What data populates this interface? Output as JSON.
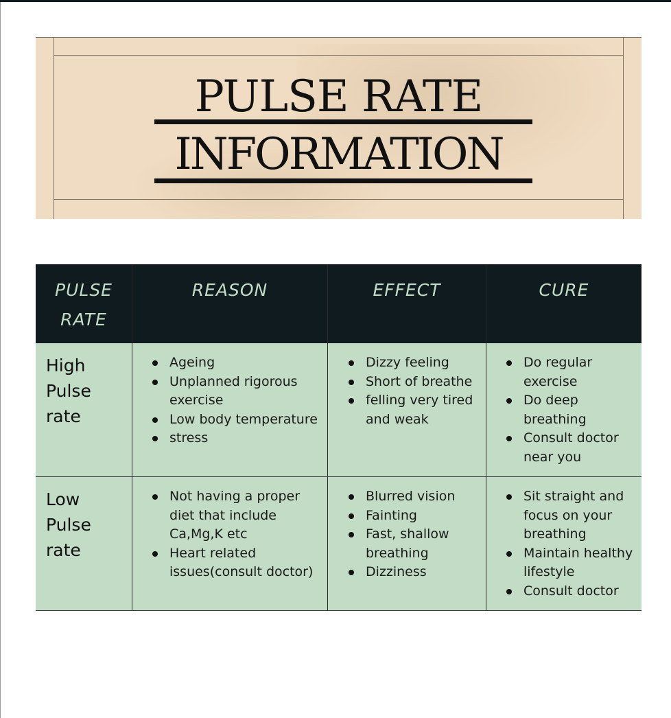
{
  "title": {
    "line1": "PULSE RATE",
    "line2": "INFORMATION"
  },
  "table": {
    "headers": {
      "pulse_rate_line1": "PULSE",
      "pulse_rate_line2": "RATE",
      "reason": "REASON",
      "effect": "EFFECT",
      "cure": "CURE"
    },
    "rows": [
      {
        "label_line1": "High",
        "label_line2": "Pulse",
        "label_line3": "rate",
        "reason": [
          "Ageing",
          "Unplanned rigorous exercise",
          "Low body temperature",
          "stress"
        ],
        "effect": [
          "Dizzy feeling",
          "Short of breathe",
          "felling very tired and weak"
        ],
        "cure": [
          "Do regular exercise",
          "Do deep breathing",
          "Consult doctor near you"
        ]
      },
      {
        "label_line1": "Low",
        "label_line2": "Pulse",
        "label_line3": "rate",
        "reason": [
          "Not having a proper diet that include Ca,Mg,K etc",
          "Heart related issues(consult doctor)"
        ],
        "effect": [
          "Blurred vision",
          "Fainting",
          "Fast, shallow breathing",
          "Dizziness"
        ],
        "cure": [
          "Sit straight and focus on your breathing",
          "Maintain healthy lifestyle",
          "Consult doctor"
        ]
      }
    ]
  },
  "colors": {
    "banner_bg": "#f0dcc2",
    "header_bg": "#0f1b1e",
    "header_text": "#c3dcc5",
    "row_bg": "#c3dcc5"
  }
}
